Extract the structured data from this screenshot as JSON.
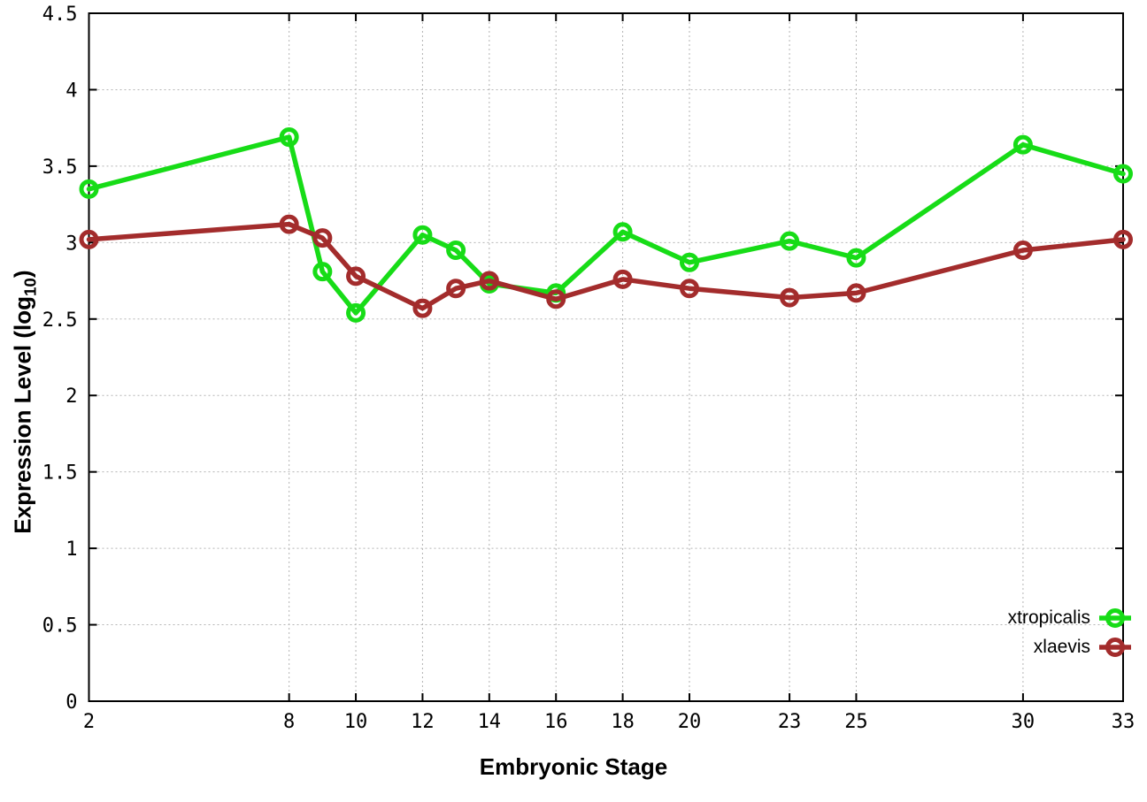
{
  "figure": {
    "background": "#ffffff",
    "border_color": "#000000",
    "grid_color": "#b4b4b4"
  },
  "chart_data": {
    "type": "line",
    "title": "",
    "xlabel": "Embryonic Stage",
    "ylabel": {
      "main": "Expression Level (log",
      "sub": "10",
      "close": ")"
    },
    "xlim": [
      2,
      33
    ],
    "ylim": [
      0,
      4.5
    ],
    "xticks": [
      2,
      8,
      10,
      12,
      14,
      16,
      18,
      20,
      23,
      25,
      30,
      33
    ],
    "yticks": [
      0,
      0.5,
      1,
      1.5,
      2,
      2.5,
      3,
      3.5,
      4,
      4.5
    ],
    "grid": true,
    "legend_position": "bottom-right-inside",
    "x": [
      2,
      8,
      9,
      10,
      12,
      13,
      14,
      16,
      18,
      20,
      23,
      25,
      30,
      33
    ],
    "series": [
      {
        "name": "xtropicalis",
        "color": "#17DC17",
        "values": [
          3.35,
          3.69,
          2.81,
          2.54,
          3.05,
          2.95,
          2.73,
          2.67,
          3.07,
          2.87,
          3.01,
          2.9,
          3.64,
          3.45
        ]
      },
      {
        "name": "xlaevis",
        "color": "#A32C2C",
        "values": [
          3.02,
          3.12,
          3.03,
          2.78,
          2.57,
          2.7,
          2.75,
          2.63,
          2.76,
          2.7,
          2.64,
          2.67,
          2.95,
          3.02
        ]
      }
    ]
  }
}
